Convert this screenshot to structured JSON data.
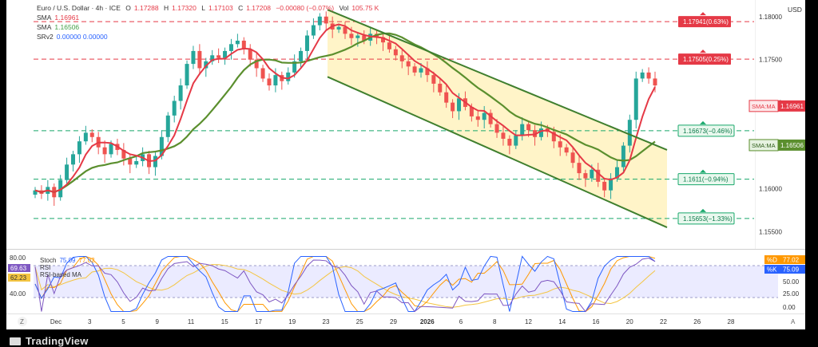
{
  "header": {
    "symbol_title": "Euro / U.S. Dollar · 4h · ICE",
    "ohlc": {
      "open_label": "O",
      "open": "1.17288",
      "high_label": "H",
      "high": "1.17320",
      "low_label": "L",
      "low": "1.17103",
      "close_label": "C",
      "close": "1.17208",
      "change": "−0.00080 (−0.07%)"
    },
    "volume_label": "Vol",
    "volume": "105.75 K",
    "currency": "USD",
    "indicators": [
      {
        "name": "SMA",
        "value": "1.16961",
        "color": "#e53946"
      },
      {
        "name": "SMA",
        "value": "1.16506",
        "color": "#43a047"
      },
      {
        "name": "SRv2",
        "value": "0.00000  0.00000",
        "color": "#2962ff"
      }
    ]
  },
  "colors": {
    "background": "#ffffff",
    "frame": "#000000",
    "up": "#26a69a",
    "down": "#ef5350",
    "sma_fast": "#e53946",
    "sma_slow": "#5b8f2e",
    "channel": "#3f7f2e",
    "channel_fill": "#fff3c2",
    "level_red": "#e53946",
    "level_green": "#18a86b",
    "rsi_band": "#e6e6ff",
    "stoch_d": "#ff9800",
    "stoch_k": "#2962ff"
  },
  "chart_data": [
    {
      "type": "candlestick",
      "price_scale": {
        "ticks": [
          "1.18000",
          "1.17500",
          "1.17000",
          "1.16500",
          "1.16000",
          "1.15500"
        ],
        "range": [
          1.153,
          1.181
        ]
      },
      "time_axis": {
        "ticks": [
          "Dec",
          "3",
          "5",
          "9",
          "11",
          "15",
          "17",
          "19",
          "23",
          "25",
          "29",
          "2026",
          "6",
          "8",
          "12",
          "14",
          "16",
          "20",
          "22",
          "26",
          "28"
        ]
      },
      "close_series": [
        1.1598,
        1.1594,
        1.1602,
        1.159,
        1.161,
        1.1628,
        1.164,
        1.1655,
        1.1665,
        1.166,
        1.1648,
        1.164,
        1.1652,
        1.1645,
        1.1635,
        1.1628,
        1.1632,
        1.164,
        1.1625,
        1.1638,
        1.166,
        1.1685,
        1.1702,
        1.172,
        1.1745,
        1.176,
        1.174,
        1.1748,
        1.1755,
        1.1752,
        1.176,
        1.1768,
        1.1772,
        1.1762,
        1.175,
        1.174,
        1.1728,
        1.172,
        1.1732,
        1.1725,
        1.1735,
        1.1748,
        1.176,
        1.1778,
        1.179,
        1.18,
        1.1792,
        1.1785,
        1.1788,
        1.178,
        1.1775,
        1.1778,
        1.1772,
        1.178,
        1.1776,
        1.177,
        1.1762,
        1.1755,
        1.1748,
        1.1742,
        1.1735,
        1.174,
        1.1732,
        1.1722,
        1.1712,
        1.17,
        1.169,
        1.1705,
        1.1695,
        1.1684,
        1.168,
        1.1688,
        1.1675,
        1.1665,
        1.1658,
        1.165,
        1.1662,
        1.1675,
        1.1668,
        1.166,
        1.167,
        1.1666,
        1.1655,
        1.1648,
        1.1642,
        1.163,
        1.1618,
        1.1612,
        1.1622,
        1.1608,
        1.1598,
        1.1612,
        1.1625,
        1.165,
        1.168,
        1.1728,
        1.1735,
        1.1728,
        1.172
      ],
      "sma_fast": {
        "name": "SMA",
        "value": 1.16961
      },
      "sma_slow": {
        "name": "SMA",
        "value": 1.16506
      },
      "levels": [
        {
          "price": 1.17941,
          "label": "1.17941(0.63%)",
          "kind": "resistance"
        },
        {
          "price": 1.17505,
          "label": "1.17505(0.25%)",
          "kind": "resistance"
        },
        {
          "price": 1.16673,
          "label": "1.16673(−0.46%)",
          "kind": "support"
        },
        {
          "price": 1.1611,
          "label": "1.1611(−0.94%)",
          "kind": "support"
        },
        {
          "price": 1.15653,
          "label": "1.15653(−1.33%)",
          "kind": "support"
        }
      ],
      "badges": [
        {
          "label": "SMA:MA",
          "value": "1.16961",
          "kind": "red"
        },
        {
          "label": "SMA:MA",
          "value": "1.16506",
          "kind": "green"
        }
      ],
      "channel": {
        "upper_start": 1.1808,
        "upper_end": 1.1645,
        "lower_start": 1.173,
        "lower_end": 1.1555
      }
    },
    {
      "type": "line",
      "name": "Stoch RSI",
      "header": {
        "label": "Stoch",
        "k": "75.09",
        "d": "77.02",
        "rsi_label": "RSI",
        "rsi_value": "69.63",
        "rsi_ma_label": "RSI-based MA",
        "rsi_ma_value": "62.23"
      },
      "left_ticks": [
        "80.00",
        "40.00"
      ],
      "right_ticks": [
        "50.00",
        "25.00",
        "0.00"
      ],
      "right_badges": [
        {
          "label": "%D",
          "value": "77.02"
        },
        {
          "label": "%K",
          "value": "75.09"
        }
      ],
      "left_badges": [
        {
          "value": "69.63"
        },
        {
          "value": "62.23"
        }
      ]
    }
  ]
}
